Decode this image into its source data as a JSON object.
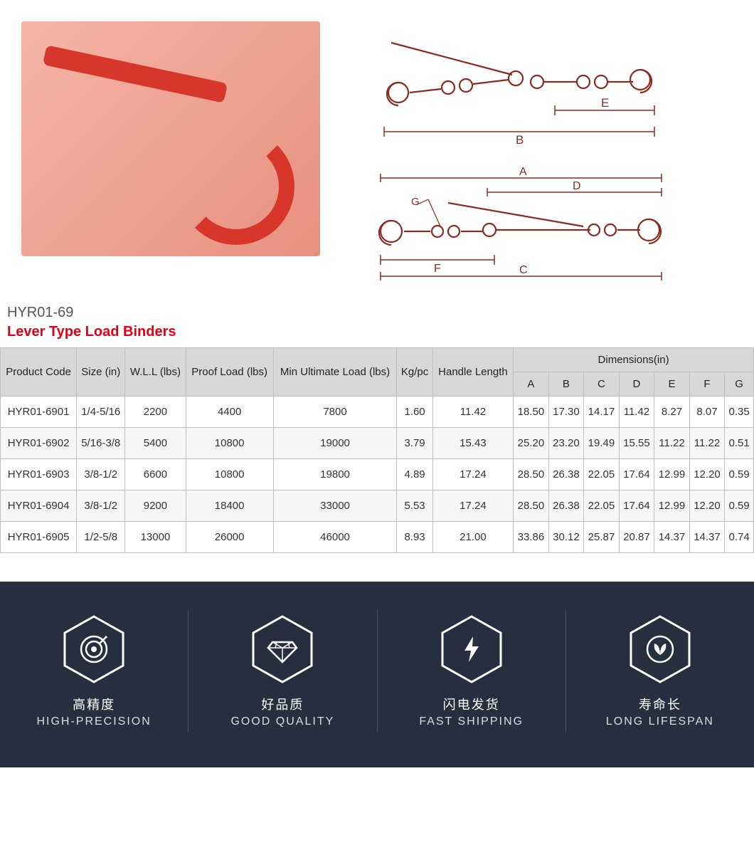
{
  "product_code_label": "HYR01-69",
  "title": "Lever Type Load Binders",
  "diagram_labels": {
    "top_E": "E",
    "top_B": "B",
    "bot_A": "A",
    "bot_D": "D",
    "bot_G": "G",
    "bot_F": "F",
    "bot_C": "C"
  },
  "table": {
    "header_group_dimensions": "Dimensions(in)",
    "columns": [
      "Product Code",
      "Size (in)",
      "W.L.L (lbs)",
      "Proof Load (lbs)",
      "Min Ultimate Load (lbs)",
      "Kg/pc",
      "Handle Length",
      "A",
      "B",
      "C",
      "D",
      "E",
      "F",
      "G"
    ],
    "rows": [
      [
        "HYR01-6901",
        "1/4-5/16",
        "2200",
        "4400",
        "7800",
        "1.60",
        "11.42",
        "18.50",
        "17.30",
        "14.17",
        "11.42",
        "8.27",
        "8.07",
        "0.35"
      ],
      [
        "HYR01-6902",
        "5/16-3/8",
        "5400",
        "10800",
        "19000",
        "3.79",
        "15.43",
        "25.20",
        "23.20",
        "19.49",
        "15.55",
        "11.22",
        "11.22",
        "0.51"
      ],
      [
        "HYR01-6903",
        "3/8-1/2",
        "6600",
        "10800",
        "19800",
        "4.89",
        "17.24",
        "28.50",
        "26.38",
        "22.05",
        "17.64",
        "12.99",
        "12.20",
        "0.59"
      ],
      [
        "HYR01-6904",
        "3/8-1/2",
        "9200",
        "18400",
        "33000",
        "5.53",
        "17.24",
        "28.50",
        "26.38",
        "22.05",
        "17.64",
        "12.99",
        "12.20",
        "0.59"
      ],
      [
        "HYR01-6905",
        "1/2-5/8",
        "13000",
        "26000",
        "46000",
        "8.93",
        "21.00",
        "33.86",
        "30.12",
        "25.87",
        "20.87",
        "14.37",
        "14.37",
        "0.74"
      ]
    ],
    "header_bg": "#d8d8d8",
    "border_color": "#bfbfbf",
    "row_alt_bg": "#f6f6f6"
  },
  "features": {
    "bg_color": "#262e3f",
    "hex_stroke": "#ffffff",
    "items": [
      {
        "icon": "target",
        "cn": "高精度",
        "en": "HIGH-PRECISION"
      },
      {
        "icon": "diamond",
        "cn": "好品质",
        "en": "GOOD QUALITY"
      },
      {
        "icon": "bolt",
        "cn": "闪电发货",
        "en": "FAST SHIPPING"
      },
      {
        "icon": "leaf",
        "cn": "寿命长",
        "en": "LONG LIFESPAN"
      }
    ]
  },
  "colors": {
    "title": "#e60012",
    "diagram_stroke": "#8a2a20",
    "feature_text": "#ffffff"
  }
}
